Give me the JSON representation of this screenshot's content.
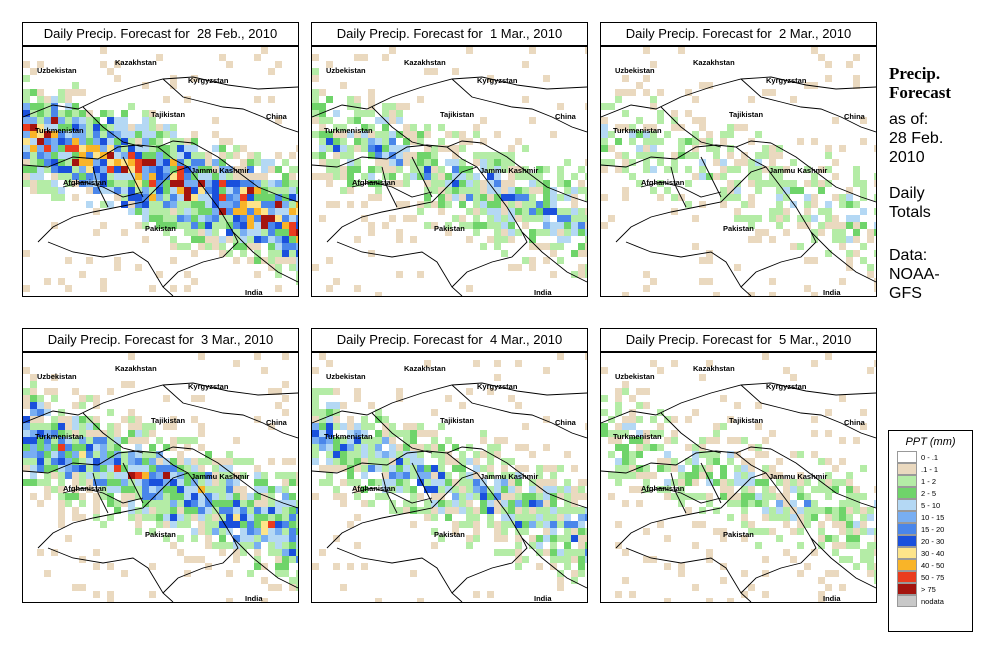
{
  "panels": [
    {
      "title": "Daily Precip. Forecast for  28 Feb., 2010",
      "intensity": 1.0
    },
    {
      "title": "Daily Precip. Forecast for  1 Mar., 2010",
      "intensity": 0.55
    },
    {
      "title": "Daily Precip. Forecast for  2 Mar., 2010",
      "intensity": 0.35
    },
    {
      "title": "Daily Precip. Forecast for  3 Mar., 2010",
      "intensity": 0.8
    },
    {
      "title": "Daily Precip. Forecast for  4 Mar., 2010",
      "intensity": 0.6
    },
    {
      "title": "Daily Precip. Forecast for  5 Mar., 2010",
      "intensity": 0.45
    }
  ],
  "map_labels": {
    "kazakhstan": "Kazakhstan",
    "uzbekistan": "Uzbekistan",
    "kyrgyzstan": "Kyrgyzstan",
    "tajikistan": "Tajikistan",
    "china": "China",
    "turkmenistan": "Turkmenistan",
    "afghanistan": "Afghanistan",
    "jammu_kashmir": "Jammu Kashmir",
    "pakistan": "Pakistan",
    "india": "India"
  },
  "side": {
    "title_line1": "Precip.",
    "title_line2": "Forecast",
    "asof_line1": "as of:",
    "asof_line2": "28 Feb.",
    "asof_line3": "2010",
    "daily_line1": "Daily",
    "daily_line2": "Totals",
    "data_line1": "Data:",
    "data_line2": "NOAA-",
    "data_line3": "GFS"
  },
  "legend": {
    "title": "PPT (mm)",
    "items": [
      {
        "label": "0 - .1",
        "color": "#ffffff"
      },
      {
        "label": ".1 - 1",
        "color": "#ead9bf"
      },
      {
        "label": "1 - 2",
        "color": "#b4eca6"
      },
      {
        "label": "2 - 5",
        "color": "#6fd46a"
      },
      {
        "label": "5 - 10",
        "color": "#b4d8f4"
      },
      {
        "label": "10 - 15",
        "color": "#78aef2"
      },
      {
        "label": "15 - 20",
        "color": "#4a86ea"
      },
      {
        "label": "20 - 30",
        "color": "#1a50dc"
      },
      {
        "label": "30 - 40",
        "color": "#fde48a"
      },
      {
        "label": "40 - 50",
        "color": "#f9b428"
      },
      {
        "label": "50 - 75",
        "color": "#ea3c1e"
      },
      {
        "label": "> 75",
        "color": "#a4140e"
      },
      {
        "label": "nodata",
        "color": "#c8c8c8"
      }
    ]
  }
}
